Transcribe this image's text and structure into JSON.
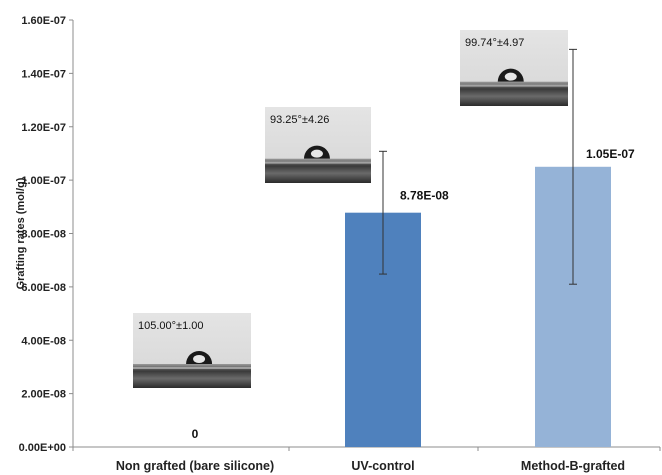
{
  "chart_data": {
    "type": "bar",
    "ylabel": "Grafting rates (mol/g)",
    "ylim": [
      0,
      1.6e-07
    ],
    "yticks": [
      "0.00E+00",
      "2.00E-08",
      "4.00E-08",
      "6.00E-08",
      "8.00E-08",
      "1.00E-07",
      "1.20E-07",
      "1.40E-07",
      "1.60E-07"
    ],
    "categories": [
      "Non grafted (bare silicone)",
      "UV-control",
      "Method-B-grafted"
    ],
    "values": [
      0,
      8.78e-08,
      1.05e-07
    ],
    "errors": [
      0,
      2.3e-08,
      4.4e-08
    ],
    "data_labels": [
      "0",
      "8.78E-08",
      "1.05E-07"
    ],
    "bar_colors": [
      "#4f81bd",
      "#4f81bd",
      "#95b3d7"
    ],
    "contact_angle_insets": [
      "105.00°±1.00",
      "93.25°±4.26",
      "99.74°±4.97"
    ],
    "grid": false,
    "legend": "none"
  }
}
